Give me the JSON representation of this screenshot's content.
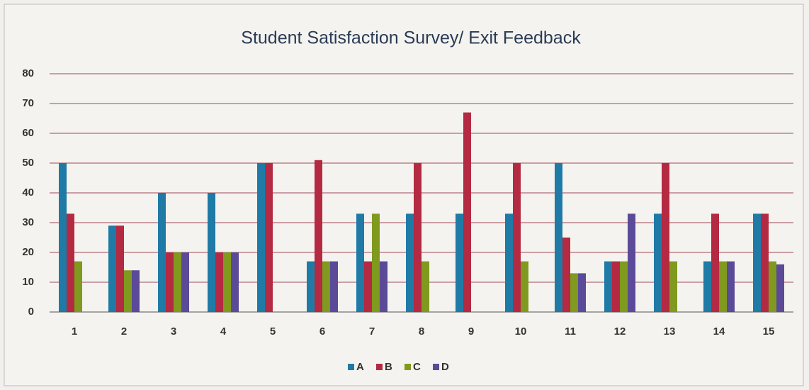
{
  "chart_data": {
    "type": "bar",
    "title": "Student Satisfaction Survey/ Exit Feedback",
    "categories": [
      "1",
      "2",
      "3",
      "4",
      "5",
      "6",
      "7",
      "8",
      "9",
      "10",
      "11",
      "12",
      "13",
      "14",
      "15"
    ],
    "series": [
      {
        "name": "A",
        "color": "#1f7aa6",
        "values": [
          50,
          29,
          40,
          40,
          50,
          17,
          33,
          33,
          33,
          33,
          50,
          17,
          33,
          17,
          33
        ]
      },
      {
        "name": "B",
        "color": "#b32a42",
        "values": [
          33,
          29,
          20,
          20,
          50,
          51,
          17,
          50,
          67,
          50,
          25,
          17,
          50,
          33,
          33
        ]
      },
      {
        "name": "C",
        "color": "#7f9a1e",
        "values": [
          17,
          14,
          20,
          20,
          0,
          17,
          33,
          17,
          0,
          17,
          13,
          17,
          17,
          17,
          17
        ]
      },
      {
        "name": "D",
        "color": "#5b4a98",
        "values": [
          0,
          14,
          20,
          20,
          0,
          17,
          17,
          0,
          0,
          0,
          13,
          33,
          0,
          17,
          16
        ]
      }
    ],
    "ylim": [
      0,
      80
    ],
    "yticks": [
      0,
      10,
      20,
      30,
      40,
      50,
      60,
      70,
      80
    ],
    "grid": true,
    "legend": "bottom"
  }
}
